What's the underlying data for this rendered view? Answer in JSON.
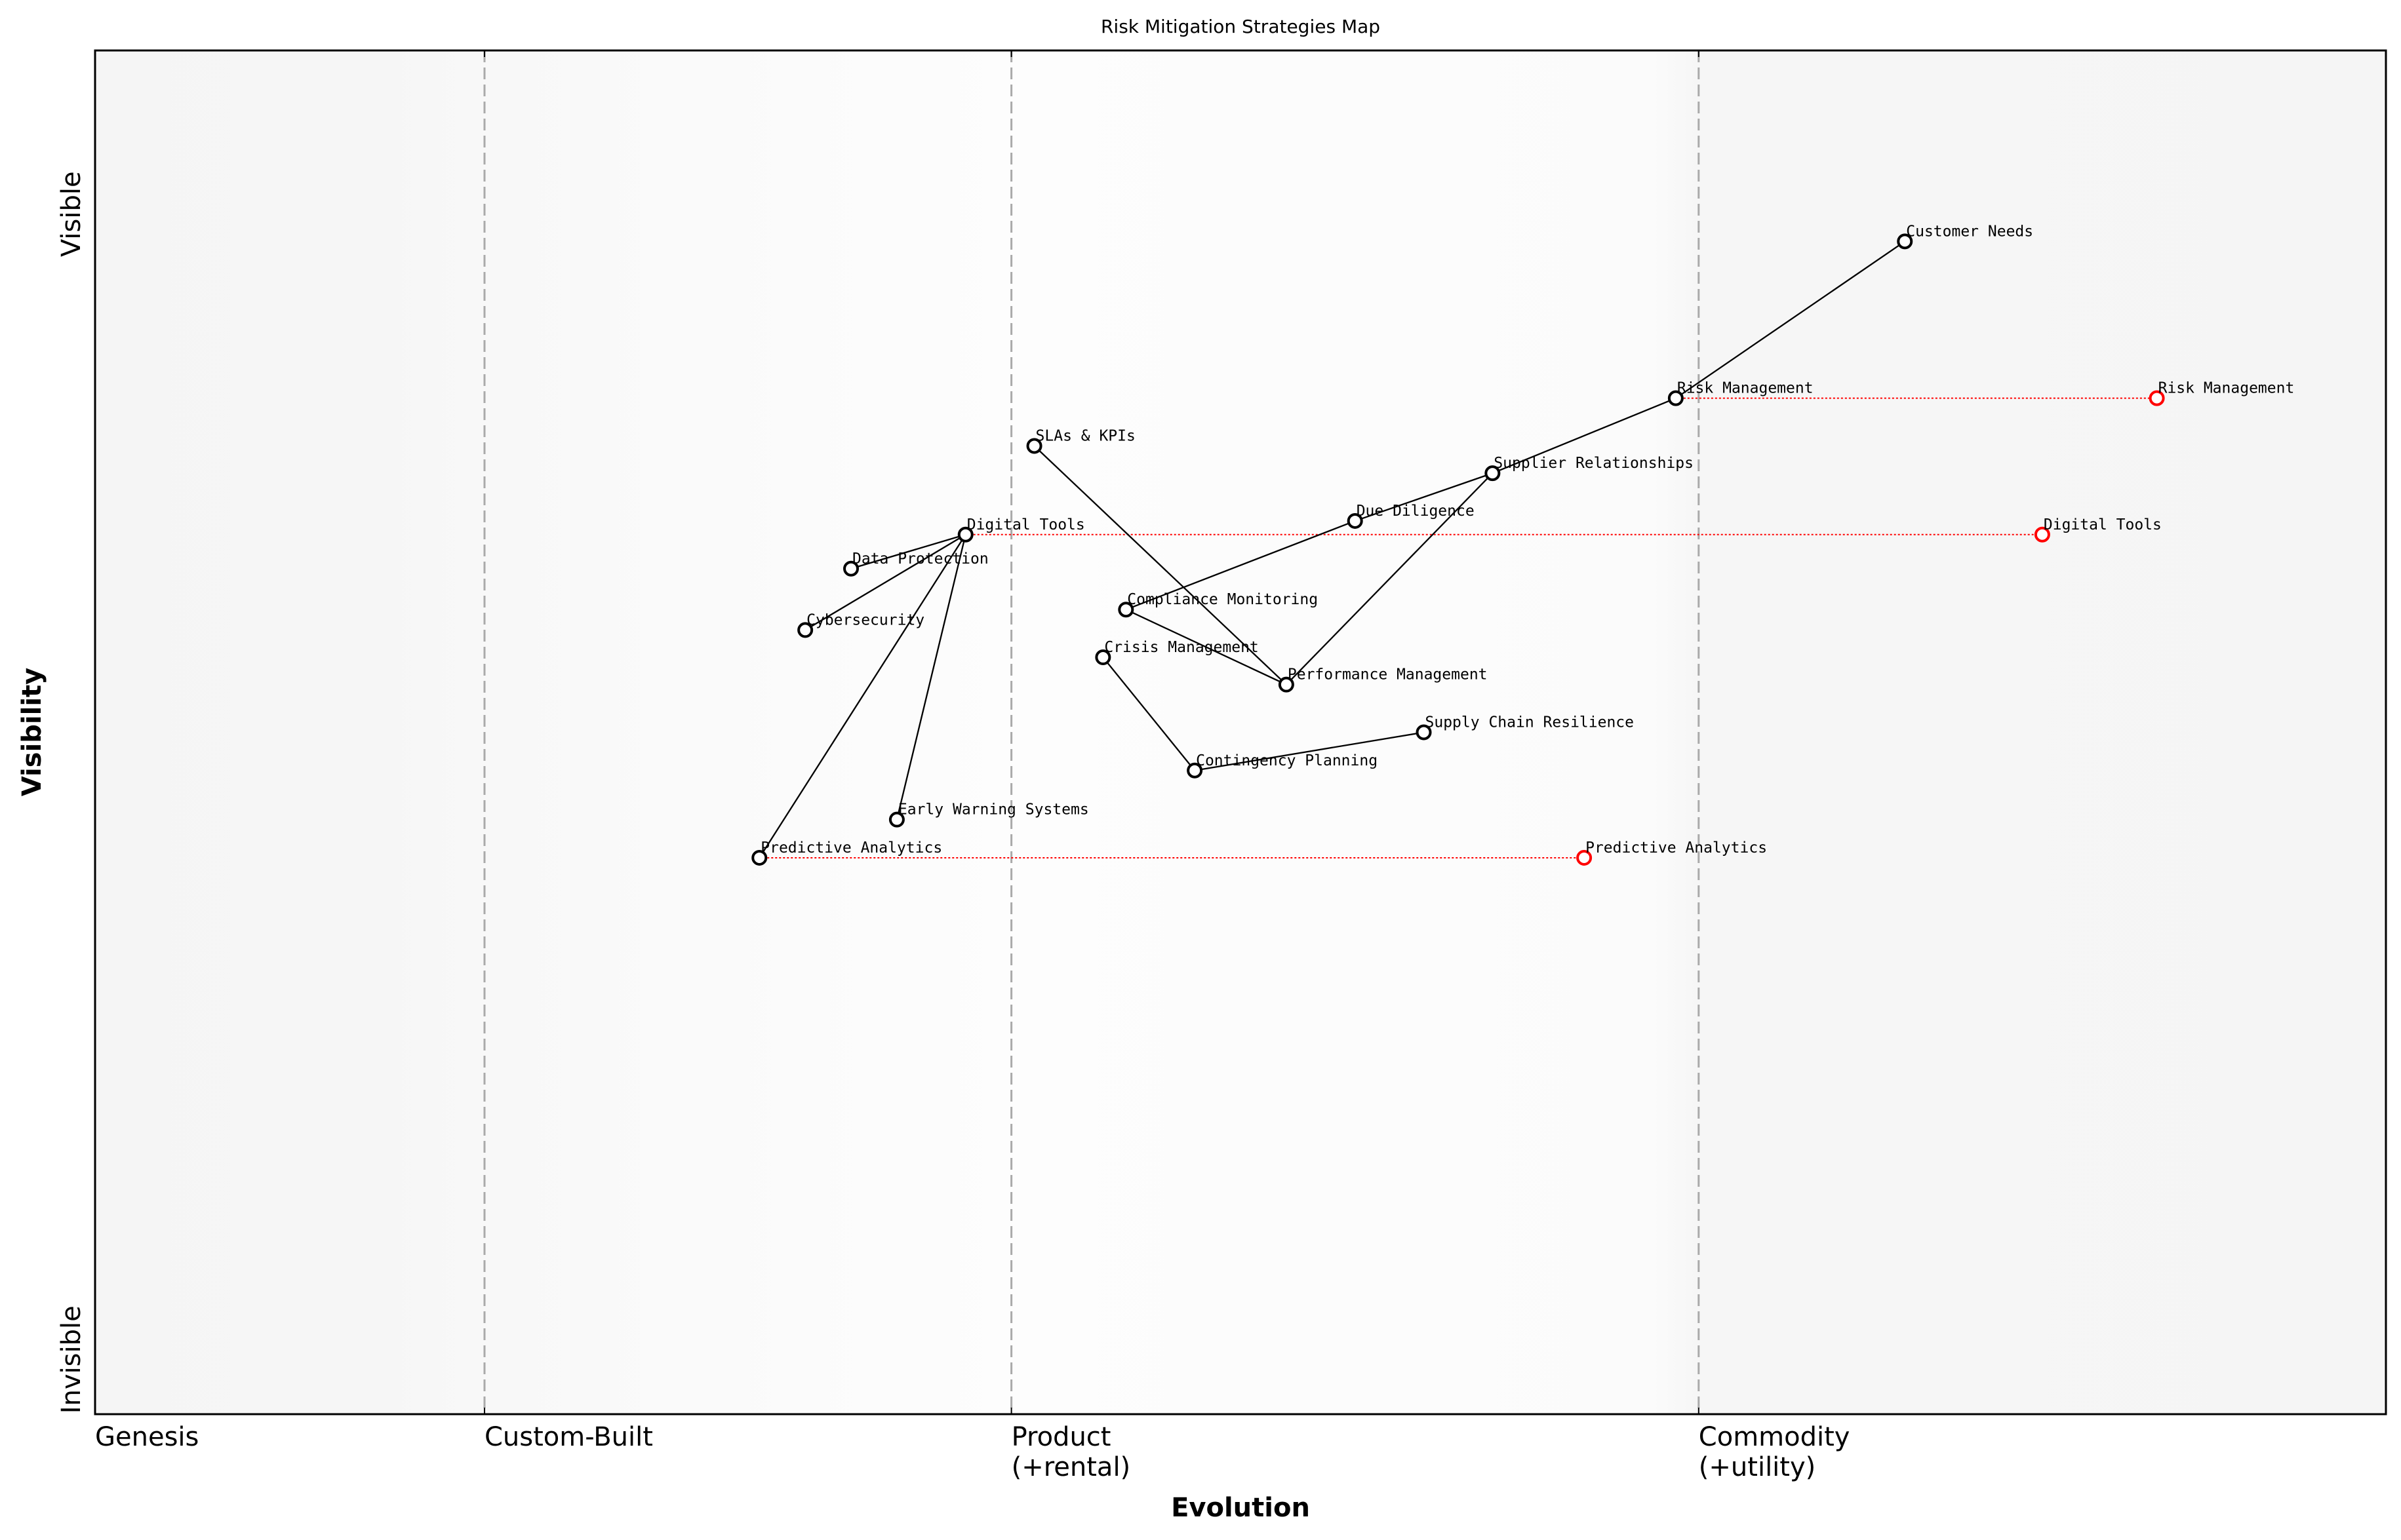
{
  "chart_data": {
    "type": "wardley-map",
    "title": "Risk Mitigation Strategies Map",
    "xlabel": "Evolution",
    "ylabel": "Visibility",
    "xlim": [
      0,
      1
    ],
    "ylim": [
      0,
      1
    ],
    "grid": false,
    "x_ticks": [
      {
        "value": 0.0,
        "lines": [
          "Genesis"
        ]
      },
      {
        "value": 0.17,
        "lines": [
          "Custom-Built"
        ]
      },
      {
        "value": 0.4,
        "lines": [
          "Product",
          "(+rental)"
        ]
      },
      {
        "value": 0.7,
        "lines": [
          "Commodity",
          "(+utility)"
        ]
      }
    ],
    "stage_boundaries": [
      0.17,
      0.4,
      0.7
    ],
    "y_ticks": [
      {
        "value": 0.88,
        "label": "Visible"
      },
      {
        "value": 0.04,
        "label": "Invisible"
      }
    ],
    "colors": {
      "node": "#000000",
      "evolved": "#ff0000",
      "boundary": "#aaaaaa",
      "link": "#000000"
    },
    "components": [
      {
        "name": "Customer Needs",
        "x": 0.79,
        "y": 0.86
      },
      {
        "name": "Risk Management",
        "x": 0.69,
        "y": 0.745
      },
      {
        "name": "Supplier Relationships",
        "x": 0.61,
        "y": 0.69
      },
      {
        "name": "Due Diligence",
        "x": 0.55,
        "y": 0.655
      },
      {
        "name": "SLAs & KPIs",
        "x": 0.41,
        "y": 0.71
      },
      {
        "name": "Digital Tools",
        "x": 0.38,
        "y": 0.645
      },
      {
        "name": "Data Protection",
        "x": 0.33,
        "y": 0.62
      },
      {
        "name": "Cybersecurity",
        "x": 0.31,
        "y": 0.575
      },
      {
        "name": "Compliance Monitoring",
        "x": 0.45,
        "y": 0.59
      },
      {
        "name": "Crisis Management",
        "x": 0.44,
        "y": 0.555
      },
      {
        "name": "Performance Management",
        "x": 0.52,
        "y": 0.535
      },
      {
        "name": "Supply Chain Resilience",
        "x": 0.58,
        "y": 0.5
      },
      {
        "name": "Contingency Planning",
        "x": 0.48,
        "y": 0.472
      },
      {
        "name": "Early Warning Systems",
        "x": 0.35,
        "y": 0.436
      },
      {
        "name": "Predictive Analytics",
        "x": 0.29,
        "y": 0.408
      }
    ],
    "links": [
      [
        "Customer Needs",
        "Risk Management"
      ],
      [
        "Risk Management",
        "Supplier Relationships"
      ],
      [
        "Supplier Relationships",
        "Due Diligence"
      ],
      [
        "Supplier Relationships",
        "Performance Management"
      ],
      [
        "Due Diligence",
        "Compliance Monitoring"
      ],
      [
        "Compliance Monitoring",
        "Performance Management"
      ],
      [
        "SLAs & KPIs",
        "Performance Management"
      ],
      [
        "Crisis Management",
        "Contingency Planning"
      ],
      [
        "Contingency Planning",
        "Supply Chain Resilience"
      ],
      [
        "Digital Tools",
        "Data Protection"
      ],
      [
        "Digital Tools",
        "Cybersecurity"
      ],
      [
        "Digital Tools",
        "Predictive Analytics"
      ],
      [
        "Digital Tools",
        "Early Warning Systems"
      ]
    ],
    "evolutions": [
      {
        "name": "Risk Management",
        "from_x": 0.69,
        "to_x": 0.9,
        "y": 0.745
      },
      {
        "name": "Digital Tools",
        "from_x": 0.38,
        "to_x": 0.85,
        "y": 0.645
      },
      {
        "name": "Predictive Analytics",
        "from_x": 0.29,
        "to_x": 0.65,
        "y": 0.408
      }
    ]
  }
}
